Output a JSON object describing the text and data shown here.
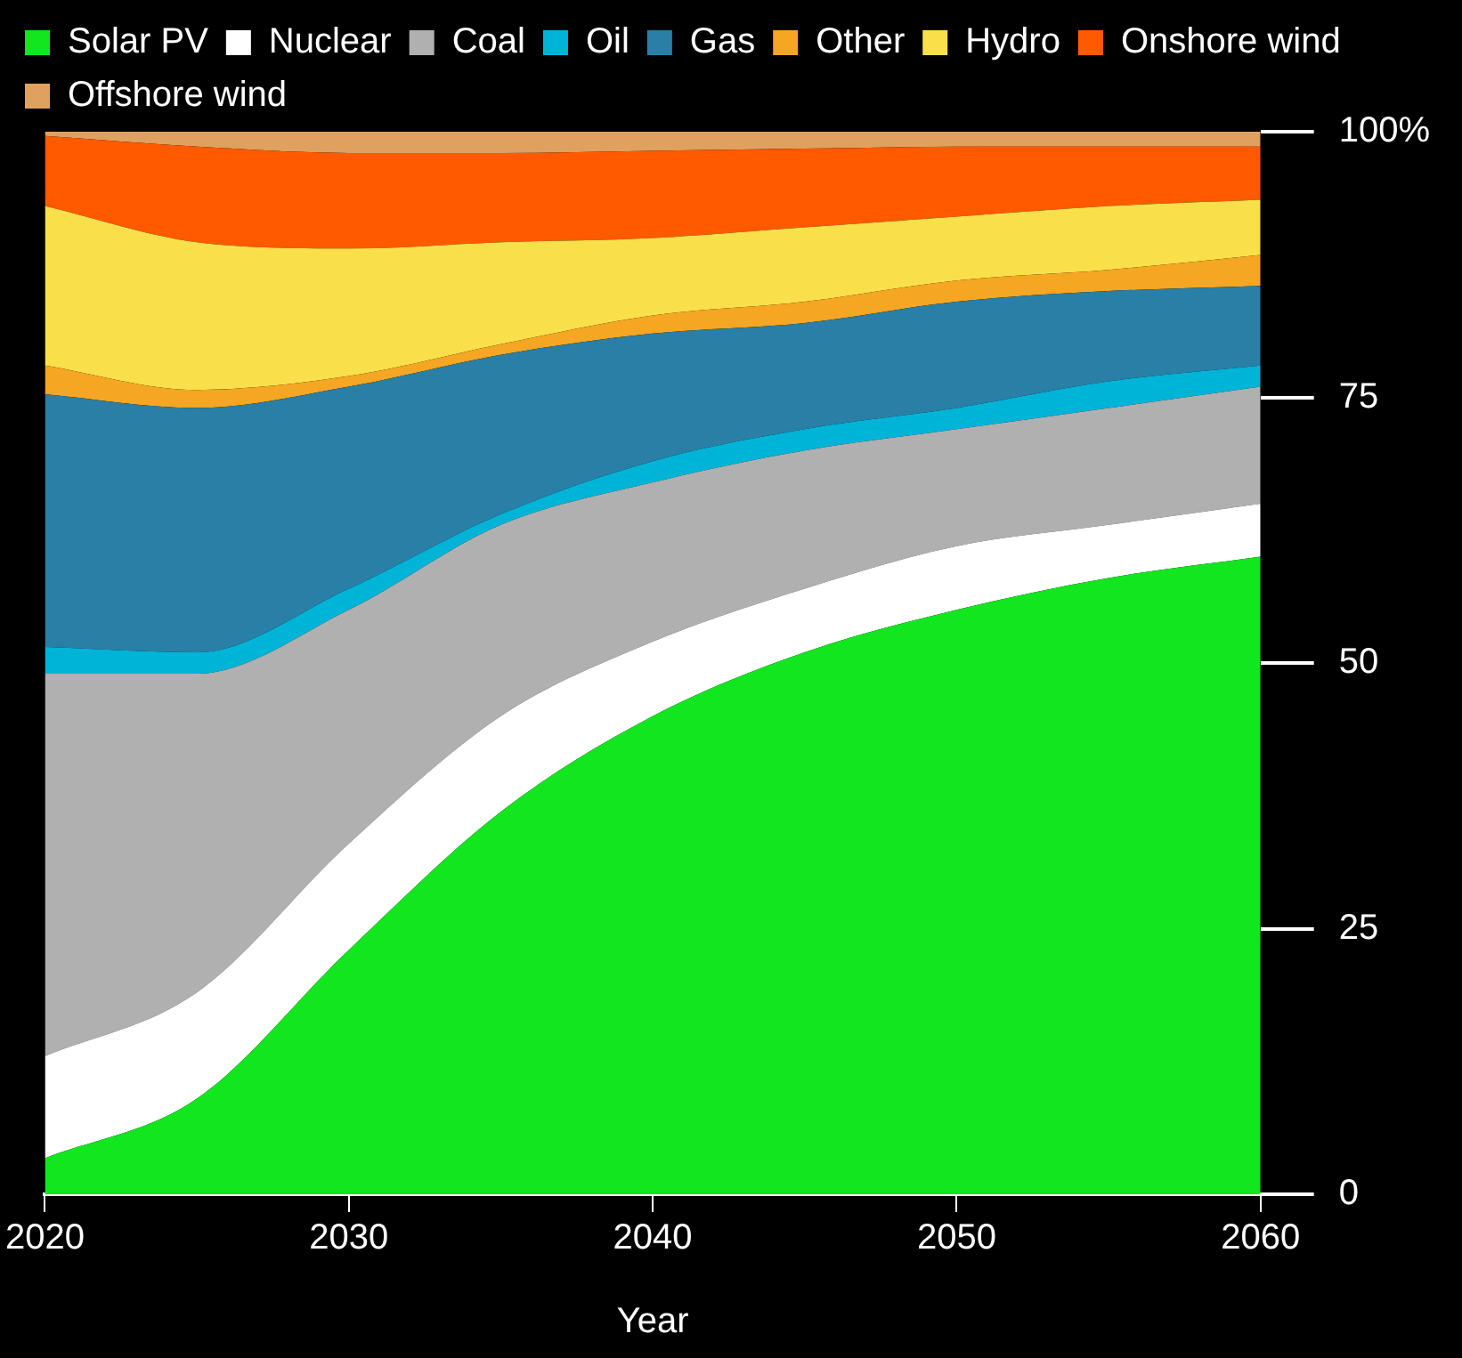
{
  "chart_data": {
    "type": "area",
    "stacked": true,
    "xlabel": "Year",
    "x": [
      2020,
      2025,
      2030,
      2035,
      2040,
      2045,
      2050,
      2055,
      2060
    ],
    "series": [
      {
        "name": "Solar PV",
        "color": "#12e61e",
        "values": [
          3.4,
          9,
          23,
          36,
          45,
          51,
          55,
          58,
          60
        ]
      },
      {
        "name": "Nuclear",
        "color": "#ffffff",
        "values": [
          9.6,
          10,
          10,
          9,
          7,
          6,
          6,
          5,
          5
        ]
      },
      {
        "name": "Coal",
        "color": "#b0b0b0",
        "values": [
          36,
          30,
          22,
          18,
          15,
          13,
          11,
          11,
          11
        ]
      },
      {
        "name": "Oil",
        "color": "#00b4d8",
        "values": [
          2.5,
          2,
          2,
          1,
          2,
          2,
          2,
          2.5,
          2
        ]
      },
      {
        "name": "Gas",
        "color": "#2a7fa6",
        "values": [
          23.8,
          23,
          19,
          15,
          12,
          10,
          10,
          8.5,
          7.5
        ]
      },
      {
        "name": "Other",
        "color": "#f5a623",
        "values": [
          2.7,
          1.7,
          1,
          1,
          1.7,
          2,
          2,
          2,
          2.9
        ]
      },
      {
        "name": "Hydro",
        "color": "#f9e04b",
        "values": [
          15,
          13.9,
          12,
          9.6,
          7.3,
          7,
          6,
          6,
          5.2
        ]
      },
      {
        "name": "Onshore wind",
        "color": "#ff5a00",
        "values": [
          6.6,
          9,
          9,
          8.4,
          8.2,
          7.4,
          6.6,
          5.6,
          5
        ]
      },
      {
        "name": "Offshore wind",
        "color": "#e0a060",
        "values": [
          0.4,
          1.4,
          2,
          2,
          1.8,
          1.6,
          1.4,
          1.4,
          1.4
        ]
      }
    ],
    "xlim": [
      2020,
      2060
    ],
    "xticks": [
      2020,
      2030,
      2040,
      2050,
      2060
    ],
    "ylim": [
      0,
      100
    ],
    "yticks": [
      0,
      25,
      50,
      75,
      {
        "value": 100,
        "label": "100%"
      }
    ],
    "grid": false,
    "legend": "top left"
  }
}
